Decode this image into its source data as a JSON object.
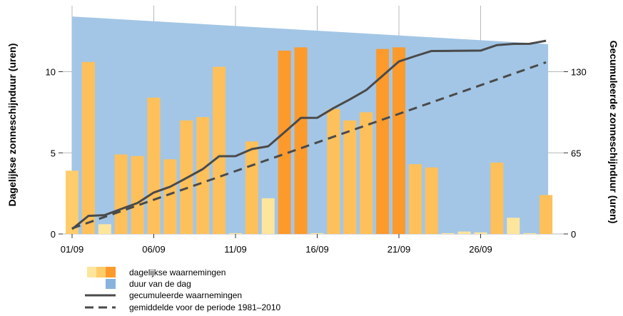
{
  "chart_data": {
    "type": "bar",
    "x_tick_labels": [
      "01/09",
      "06/09",
      "11/09",
      "16/09",
      "21/09",
      "26/09"
    ],
    "x_tick_days": [
      1,
      6,
      11,
      16,
      21,
      26
    ],
    "days": [
      1,
      2,
      3,
      4,
      5,
      6,
      7,
      8,
      9,
      10,
      11,
      12,
      13,
      14,
      15,
      16,
      17,
      18,
      19,
      20,
      21,
      22,
      23,
      24,
      25,
      26,
      27,
      28,
      29,
      30
    ],
    "ylabel_left": "Dagelijkse zonneschijnduur (uren)",
    "ylabel_right": "Gecumuleerde zonneschijnduur (uren)",
    "ylim_left": [
      0,
      13.6
    ],
    "ylim_right": [
      0,
      176.8
    ],
    "y_ticks_left": [
      0,
      5,
      10
    ],
    "y_ticks_right": [
      0,
      65,
      130
    ],
    "grid": true,
    "legend_position": "bottom-left",
    "series": [
      {
        "name": "dagelijkse waarnemingen",
        "kind": "bar",
        "axis": "left",
        "values": [
          3.9,
          10.6,
          0.6,
          4.9,
          4.8,
          8.4,
          4.6,
          7.0,
          7.2,
          10.3,
          0.05,
          5.7,
          2.2,
          11.3,
          11.5,
          0.05,
          7.7,
          7.0,
          7.5,
          11.4,
          11.5,
          4.3,
          4.1,
          0.05,
          0.15,
          0.1,
          4.4,
          1.0,
          0.05,
          2.4
        ],
        "category": [
          "low",
          "mid",
          "vlow",
          "mid",
          "mid",
          "mid",
          "mid",
          "mid",
          "mid",
          "mid",
          "vlow",
          "mid",
          "vlow",
          "high",
          "high",
          "vlow",
          "mid",
          "mid",
          "mid",
          "high",
          "high",
          "mid",
          "mid",
          "vlow",
          "vlow",
          "vlow",
          "mid",
          "vlow",
          "vlow",
          "mid"
        ]
      },
      {
        "name": "duur van de dag",
        "kind": "area",
        "axis": "left",
        "x": [
          1,
          30
        ],
        "values": [
          13.4,
          11.7
        ]
      },
      {
        "name": "gecumuleerde waarnemingen",
        "kind": "line",
        "axis": "right",
        "values": [
          3.9,
          14.5,
          15.1,
          20.0,
          24.8,
          33.2,
          37.8,
          44.8,
          52.0,
          62.3,
          62.35,
          68.0,
          70.2,
          81.5,
          93.0,
          93.05,
          100.8,
          107.8,
          115.3,
          126.7,
          138.2,
          142.5,
          146.6,
          146.65,
          146.8,
          146.9,
          151.3,
          152.3,
          152.35,
          154.8
        ]
      },
      {
        "name": "gemiddelde voor de periode 1981–2010",
        "kind": "dashed-line",
        "axis": "right",
        "x": [
          1,
          30
        ],
        "values": [
          4.5,
          137.5
        ]
      }
    ],
    "colors": {
      "bar_vlow": "#fde59c",
      "bar_low": "#fecc6a",
      "bar_mid": "#fec05a",
      "bar_high": "#fd9a2c",
      "daylength": "#a3c6e6",
      "cumulative": "#4a4a4a",
      "average": "#4a4a4a",
      "grid": "#b9b9b9"
    }
  }
}
